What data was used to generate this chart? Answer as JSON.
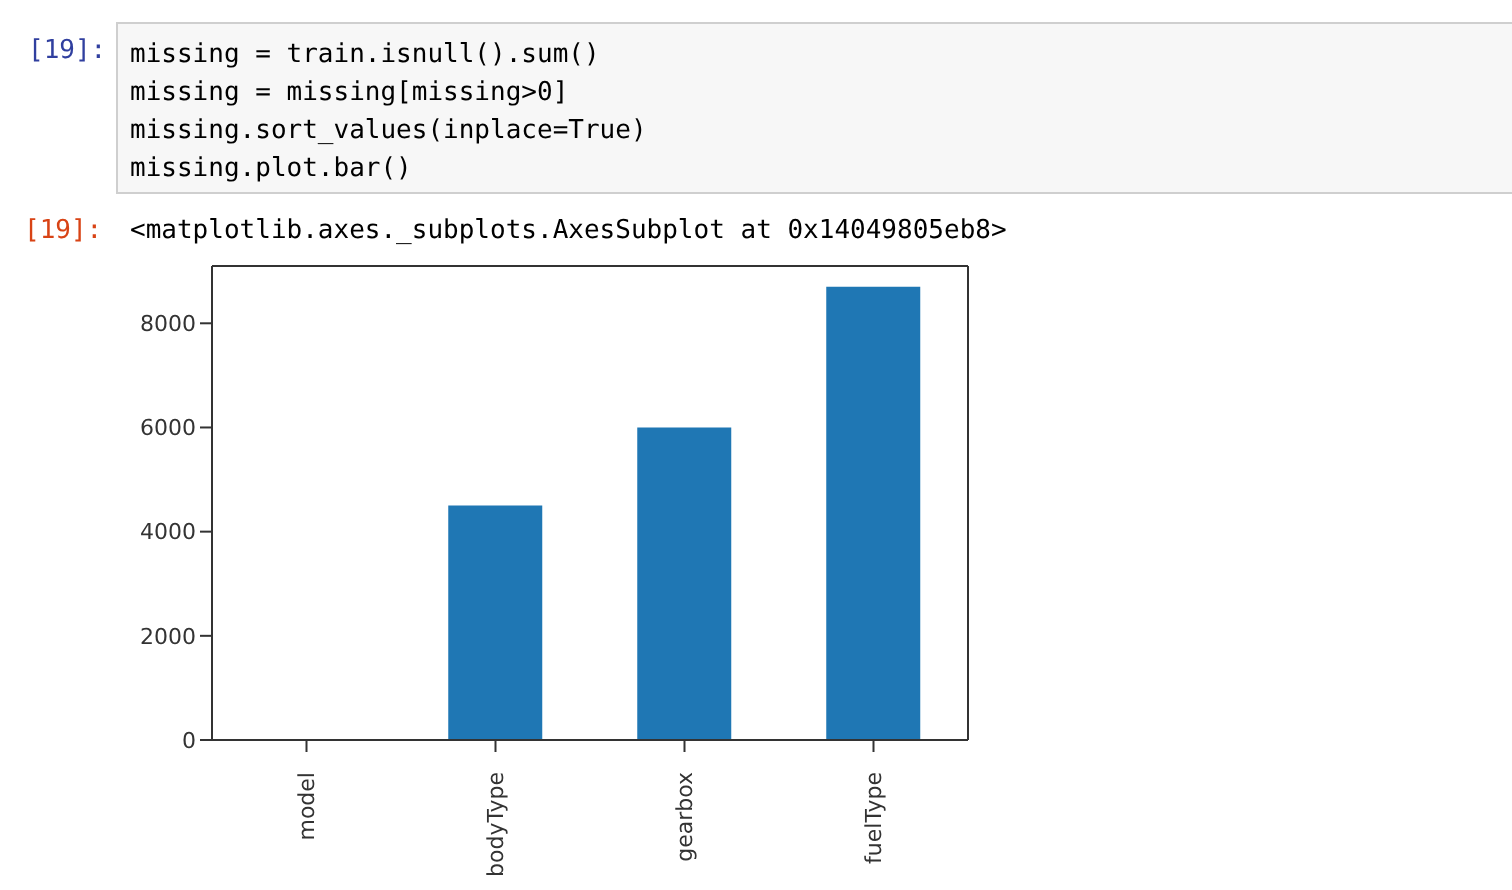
{
  "chart_data": {
    "type": "bar",
    "categories": [
      "model",
      "bodyType",
      "gearbox",
      "fuelType"
    ],
    "values": [
      0,
      4500,
      6000,
      8700
    ],
    "color": "#1f77b4",
    "ylim": [
      0,
      9100
    ],
    "yticks": [
      0,
      2000,
      4000,
      6000,
      8000
    ],
    "grid": false,
    "legend": false,
    "annotations": [
      "[19]:",
      "missing = train.isnull().sum()",
      "missing = missing[missing>0]",
      "missing.sort_values(inplace=True)",
      "missing.plot.bar()",
      "[19]:",
      "<matplotlib.axes._subplots.AxesSubplot at 0x14049805eb8>"
    ]
  }
}
